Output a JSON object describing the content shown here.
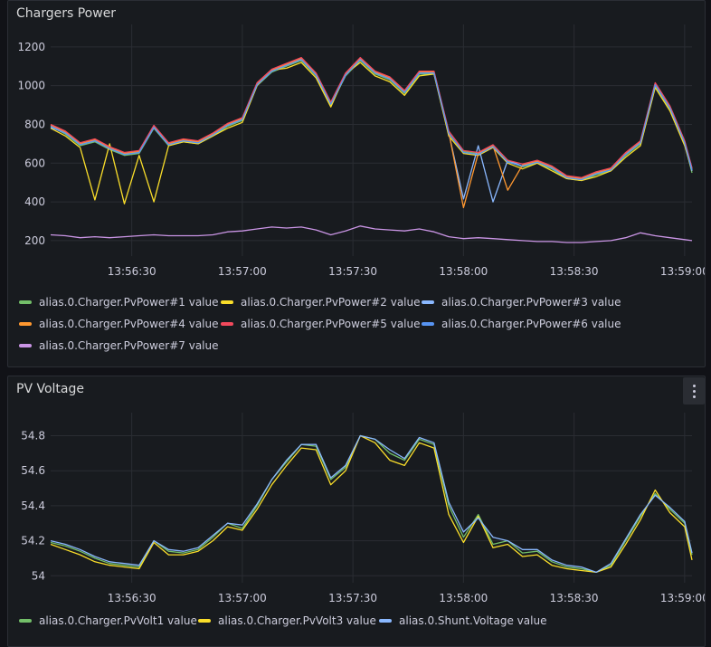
{
  "panels": [
    {
      "title": "Chargers Power",
      "chart_data": {
        "type": "line",
        "x_ticks": [
          "13:56:30",
          "13:57:00",
          "13:57:30",
          "13:58:00",
          "13:58:30",
          "13:59:00"
        ],
        "y_ticks": [
          "200",
          "400",
          "600",
          "800",
          "1000",
          "1200"
        ],
        "x_range": [
          "13:56:08",
          "13:59:02"
        ],
        "ylim": [
          120,
          1260
        ],
        "times": [
          "13:56:08",
          "13:56:12",
          "13:56:16",
          "13:56:20",
          "13:56:24",
          "13:56:28",
          "13:56:32",
          "13:56:36",
          "13:56:40",
          "13:56:44",
          "13:56:48",
          "13:56:52",
          "13:56:56",
          "13:57:00",
          "13:57:04",
          "13:57:08",
          "13:57:12",
          "13:57:16",
          "13:57:20",
          "13:57:24",
          "13:57:28",
          "13:57:32",
          "13:57:36",
          "13:57:40",
          "13:57:44",
          "13:57:48",
          "13:57:52",
          "13:57:56",
          "13:58:00",
          "13:58:04",
          "13:58:08",
          "13:58:12",
          "13:58:16",
          "13:58:20",
          "13:58:24",
          "13:58:28",
          "13:58:32",
          "13:58:36",
          "13:58:40",
          "13:58:44",
          "13:58:48",
          "13:58:52",
          "13:58:56",
          "13:59:00",
          "13:59:02"
        ],
        "series": [
          {
            "name": "alias.0.Charger.PvPower#1 value",
            "color": "#73bf69",
            "values": [
              790,
              750,
              690,
              710,
              670,
              640,
              650,
              780,
              690,
              710,
              700,
              740,
              790,
              820,
              1000,
              1070,
              1100,
              1130,
              1050,
              900,
              1050,
              1130,
              1060,
              1030,
              960,
              1060,
              1060,
              750,
              660,
              650,
              690,
              610,
              580,
              600,
              570,
              520,
              510,
              540,
              560,
              640,
              700,
              1000,
              880,
              700,
              550
            ]
          },
          {
            "name": "alias.0.Charger.PvPower#2 value",
            "color": "#fade2a",
            "values": [
              780,
              740,
              680,
              410,
              700,
              390,
              640,
              400,
              690,
              710,
              700,
              740,
              780,
              810,
              1000,
              1080,
              1090,
              1120,
              1040,
              890,
              1060,
              1120,
              1050,
              1020,
              950,
              1050,
              1060,
              740,
              650,
              640,
              680,
              600,
              570,
              600,
              560,
              520,
              510,
              530,
              560,
              630,
              690,
              990,
              870,
              690,
              560
            ]
          },
          {
            "name": "alias.0.Charger.PvPower#3 value",
            "color": "#8ab8ff",
            "values": [
              785,
              755,
              695,
              715,
              675,
              645,
              655,
              785,
              695,
              715,
              705,
              745,
              795,
              825,
              1005,
              1075,
              1105,
              1135,
              1055,
              905,
              1055,
              1135,
              1065,
              1035,
              965,
              1065,
              1065,
              755,
              415,
              690,
              400,
              615,
              585,
              605,
              575,
              525,
              515,
              545,
              565,
              645,
              705,
              1005,
              885,
              705,
              560
            ]
          },
          {
            "name": "alias.0.Charger.PvPower#4 value",
            "color": "#ff9830",
            "values": [
              795,
              760,
              700,
              720,
              680,
              650,
              660,
              790,
              700,
              720,
              710,
              750,
              800,
              830,
              1010,
              1080,
              1110,
              1140,
              1060,
              910,
              1060,
              1140,
              1070,
              1040,
              970,
              1070,
              1070,
              760,
              370,
              650,
              690,
              460,
              590,
              610,
              580,
              530,
              520,
              550,
              570,
              650,
              710,
              1010,
              890,
              710,
              570
            ]
          },
          {
            "name": "alias.0.Charger.PvPower#5 value",
            "color": "#f2495c",
            "values": [
              800,
              765,
              705,
              725,
              685,
              655,
              665,
              795,
              705,
              725,
              715,
              755,
              805,
              835,
              1015,
              1085,
              1115,
              1145,
              1065,
              915,
              1065,
              1145,
              1075,
              1045,
              975,
              1075,
              1075,
              765,
              665,
              655,
              695,
              615,
              595,
              615,
              585,
              535,
              525,
              555,
              575,
              655,
              715,
              1015,
              895,
              715,
              575
            ]
          },
          {
            "name": "alias.0.Charger.PvPower#6 value",
            "color": "#5794f2",
            "values": [
              790,
              755,
              695,
              715,
              675,
              645,
              655,
              785,
              695,
              715,
              705,
              745,
              795,
              825,
              1005,
              1075,
              1105,
              1135,
              1055,
              905,
              1055,
              1135,
              1065,
              1035,
              965,
              1065,
              1065,
              755,
              655,
              645,
              685,
              605,
              585,
              605,
              575,
              525,
              515,
              545,
              565,
              645,
              705,
              1005,
              885,
              705,
              565
            ]
          },
          {
            "name": "alias.0.Charger.PvPower#7 value",
            "color": "#ca95e5",
            "values": [
              230,
              225,
              215,
              220,
              215,
              220,
              225,
              230,
              225,
              225,
              225,
              230,
              245,
              250,
              260,
              270,
              265,
              270,
              255,
              230,
              250,
              275,
              260,
              255,
              250,
              260,
              245,
              220,
              210,
              215,
              210,
              205,
              200,
              195,
              195,
              190,
              190,
              195,
              200,
              215,
              240,
              225,
              215,
              205,
              200
            ]
          }
        ]
      }
    },
    {
      "title": "PV Voltage",
      "chart_data": {
        "type": "line",
        "x_ticks": [
          "13:56:30",
          "13:57:00",
          "13:57:30",
          "13:58:00",
          "13:58:30",
          "13:59:00"
        ],
        "y_ticks": [
          "54",
          "54.2",
          "54.4",
          "54.6",
          "54.8"
        ],
        "x_range": [
          "13:56:08",
          "13:59:02"
        ],
        "ylim": [
          53.96,
          54.87
        ],
        "times": [
          "13:56:08",
          "13:56:12",
          "13:56:16",
          "13:56:20",
          "13:56:24",
          "13:56:28",
          "13:56:32",
          "13:56:36",
          "13:56:40",
          "13:56:44",
          "13:56:48",
          "13:56:52",
          "13:56:56",
          "13:57:00",
          "13:57:04",
          "13:57:08",
          "13:57:12",
          "13:57:16",
          "13:57:20",
          "13:57:24",
          "13:57:28",
          "13:57:32",
          "13:57:36",
          "13:57:40",
          "13:57:44",
          "13:57:48",
          "13:57:52",
          "13:57:56",
          "13:58:00",
          "13:58:04",
          "13:58:08",
          "13:58:12",
          "13:58:16",
          "13:58:20",
          "13:58:24",
          "13:58:28",
          "13:58:32",
          "13:58:36",
          "13:58:40",
          "13:58:44",
          "13:58:48",
          "13:58:52",
          "13:58:56",
          "13:59:00",
          "13:59:02"
        ],
        "series": [
          {
            "name": "alias.0.Charger.PvVolt1 value",
            "color": "#73bf69",
            "values": [
              54.19,
              54.17,
              54.14,
              54.1,
              54.07,
              54.06,
              54.05,
              54.2,
              54.14,
              54.13,
              54.15,
              54.22,
              54.3,
              54.27,
              54.4,
              54.55,
              54.65,
              54.75,
              54.74,
              54.55,
              54.62,
              54.8,
              54.78,
              54.7,
              54.66,
              54.78,
              54.75,
              54.4,
              54.22,
              54.35,
              54.18,
              54.2,
              54.13,
              54.14,
              54.08,
              54.05,
              54.04,
              54.02,
              54.06,
              54.2,
              54.34,
              54.47,
              54.38,
              54.3,
              54.12
            ]
          },
          {
            "name": "alias.0.Charger.PvVolt3 value",
            "color": "#fade2a",
            "values": [
              54.18,
              54.15,
              54.12,
              54.08,
              54.06,
              54.05,
              54.04,
              54.19,
              54.12,
              54.12,
              54.14,
              54.2,
              54.28,
              54.26,
              54.38,
              54.52,
              54.63,
              54.73,
              54.72,
              54.52,
              54.6,
              54.8,
              54.76,
              54.66,
              54.63,
              54.76,
              54.73,
              54.35,
              54.19,
              54.34,
              54.16,
              54.18,
              54.11,
              54.12,
              54.06,
              54.04,
              54.03,
              54.02,
              54.05,
              54.18,
              54.32,
              54.49,
              54.36,
              54.28,
              54.09
            ]
          },
          {
            "name": "alias.0.Shunt.Voltage value",
            "color": "#8ab8ff",
            "values": [
              54.2,
              54.18,
              54.15,
              54.11,
              54.08,
              54.07,
              54.06,
              54.2,
              54.15,
              54.14,
              54.16,
              54.23,
              54.3,
              54.29,
              54.41,
              54.55,
              54.66,
              54.75,
              54.75,
              54.56,
              54.63,
              54.8,
              54.78,
              54.72,
              54.67,
              54.79,
              54.76,
              54.42,
              54.25,
              54.33,
              54.22,
              54.2,
              54.15,
              54.15,
              54.09,
              54.06,
              54.05,
              54.02,
              54.07,
              54.21,
              54.35,
              54.46,
              54.39,
              54.31,
              54.13
            ]
          }
        ]
      }
    }
  ]
}
